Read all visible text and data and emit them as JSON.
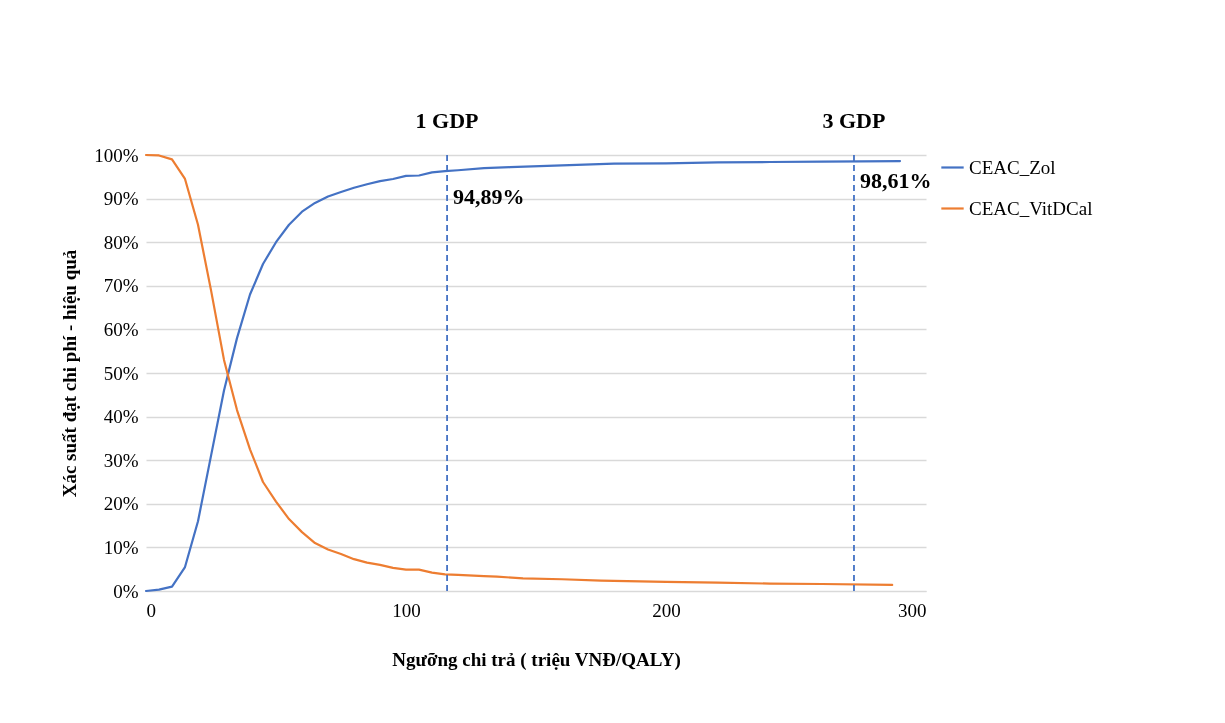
{
  "chart_data": {
    "type": "line",
    "xlabel": "Ngưỡng chi trả ( triệu VNĐ/QALY)",
    "ylabel": "Xác suất đạt chi phí - hiệu quả",
    "xlim": [
      0,
      300
    ],
    "xticks": [
      0,
      100,
      200,
      300
    ],
    "ylim": [
      0,
      100
    ],
    "yticks": [
      {
        "value": 0,
        "label": "0%"
      },
      {
        "value": 10,
        "label": "10%"
      },
      {
        "value": 20,
        "label": "20%"
      },
      {
        "value": 30,
        "label": "30%"
      },
      {
        "value": 40,
        "label": "40%"
      },
      {
        "value": 50,
        "label": "50%"
      },
      {
        "value": 60,
        "label": "60%"
      },
      {
        "value": 70,
        "label": "70%"
      },
      {
        "value": 80,
        "label": "80%"
      },
      {
        "value": 90,
        "label": "90%"
      },
      {
        "value": 100,
        "label": "100%"
      }
    ],
    "grid": "y",
    "legend": "right",
    "line_style": "solid",
    "series": [
      {
        "name": "CEAC_Zol",
        "color": "#4472c4",
        "x": [
          0,
          5,
          10,
          15,
          20,
          25,
          30,
          35,
          40,
          45,
          50,
          55,
          60,
          65,
          70,
          75,
          80,
          85,
          90,
          95,
          100,
          105,
          110,
          115,
          120,
          130,
          140,
          160,
          180,
          200,
          220,
          240,
          260,
          290
        ],
        "values": [
          0,
          0.3,
          1,
          5.5,
          16,
          31,
          46,
          58,
          68,
          75,
          80,
          84,
          87,
          89,
          90.5,
          91.5,
          92.5,
          93.3,
          94,
          94.5,
          95.2,
          95.3,
          96,
          96.3,
          96.5,
          97,
          97.2,
          97.6,
          98,
          98.1,
          98.3,
          98.4,
          98.5,
          98.6
        ]
      },
      {
        "name": "CEAC_VitDCal",
        "color": "#ed7d31",
        "x": [
          0,
          5,
          10,
          15,
          20,
          25,
          30,
          35,
          40,
          45,
          50,
          55,
          60,
          65,
          70,
          75,
          80,
          85,
          90,
          95,
          100,
          105,
          110,
          115,
          120,
          130,
          135,
          145,
          160,
          175,
          200,
          220,
          240,
          260,
          287
        ],
        "values": [
          100,
          99.9,
          99,
          94.5,
          84,
          69,
          53,
          41.5,
          32.5,
          25,
          20.5,
          16.5,
          13.5,
          11,
          9.5,
          8.5,
          7.3,
          6.5,
          6,
          5.3,
          4.9,
          4.9,
          4.2,
          3.8,
          3.7,
          3.4,
          3.3,
          2.9,
          2.7,
          2.4,
          2.1,
          1.9,
          1.7,
          1.6,
          1.4
        ]
      }
    ],
    "ref_lines": [
      {
        "axis": "x",
        "value": 115.8,
        "label": "1 GDP",
        "color": "#4472c4",
        "line_style": "dashed"
      },
      {
        "axis": "x",
        "value": 272.3,
        "label": "3 GDP",
        "color": "#4472c4",
        "line_style": "dashed"
      }
    ],
    "annotations": [
      {
        "text": "94,89%",
        "x": 115.8,
        "y": 94.89
      },
      {
        "text": "98,61%",
        "x": 272.3,
        "y": 98.61
      }
    ]
  }
}
